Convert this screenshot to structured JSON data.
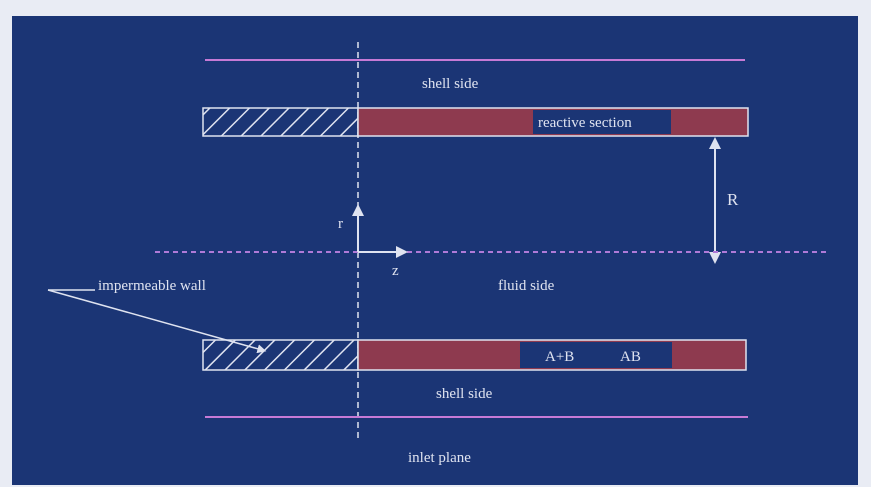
{
  "diagram": {
    "labels": {
      "shell_side_top": "shell side",
      "reactive_section": "reactive section",
      "radius": "R",
      "r_axis": "r",
      "z_axis": "z",
      "impermeable_wall": "impermeable wall",
      "fluid_side": "fluid side",
      "species_a_b": "A+B",
      "species_ab": "AB",
      "shell_side_bottom": "shell side",
      "inlet_plane": "inlet plane"
    },
    "colors": {
      "background": "#1b3575",
      "reactive_fill": "#8e3a4f",
      "line": "#dfe3f0",
      "shell_line": "#c77ad6",
      "axis_line": "#b07ad8"
    }
  }
}
